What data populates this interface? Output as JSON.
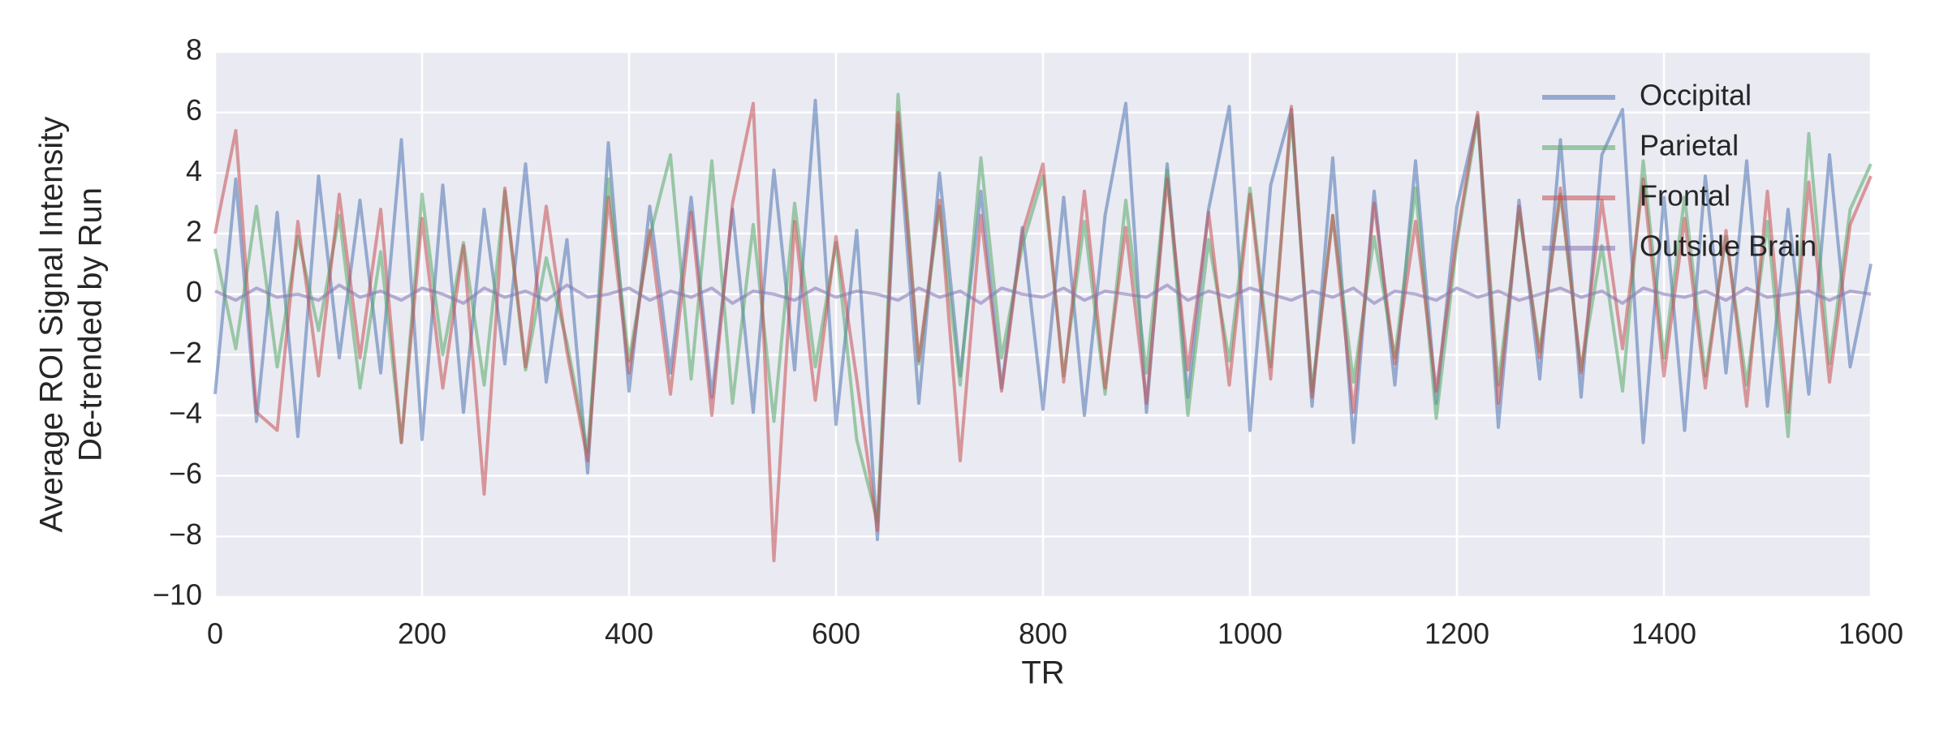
{
  "chart_data": {
    "type": "line",
    "xlabel": "TR",
    "ylabel": [
      "Average ROI Signal Intensity",
      "De-trended by Run"
    ],
    "x": [
      0,
      20,
      40,
      60,
      80,
      100,
      120,
      140,
      160,
      180,
      200,
      220,
      240,
      260,
      280,
      300,
      320,
      340,
      360,
      380,
      400,
      420,
      440,
      460,
      480,
      500,
      520,
      540,
      560,
      580,
      600,
      620,
      640,
      660,
      680,
      700,
      720,
      740,
      760,
      780,
      800,
      820,
      840,
      860,
      880,
      900,
      920,
      940,
      960,
      980,
      1000,
      1020,
      1040,
      1060,
      1080,
      1100,
      1120,
      1140,
      1160,
      1180,
      1200,
      1220,
      1240,
      1260,
      1280,
      1300,
      1320,
      1340,
      1360,
      1380,
      1400,
      1420,
      1440,
      1460,
      1480,
      1500,
      1520,
      1540,
      1560,
      1580,
      1600
    ],
    "series": [
      {
        "name": "Occipital",
        "color": "#4c72b0",
        "values": [
          -3.3,
          3.8,
          -4.2,
          2.7,
          -4.7,
          3.9,
          -2.1,
          3.1,
          -2.6,
          5.1,
          -4.8,
          3.6,
          -3.9,
          2.8,
          -2.3,
          4.3,
          -2.9,
          1.8,
          -5.9,
          5.0,
          -3.2,
          2.9,
          -2.6,
          3.2,
          -3.4,
          2.8,
          -3.9,
          4.1,
          -2.5,
          6.4,
          -4.3,
          2.1,
          -8.1,
          5.6,
          -3.6,
          4.0,
          -2.7,
          3.4,
          -3.1,
          2.2,
          -3.8,
          3.2,
          -4.0,
          2.6,
          6.3,
          -3.9,
          4.3,
          -3.4,
          2.8,
          6.2,
          -4.5,
          3.6,
          6.1,
          -3.7,
          4.5,
          -4.9,
          3.4,
          -3.0,
          4.4,
          -3.6,
          2.9,
          5.9,
          -4.4,
          3.1,
          -2.8,
          5.1,
          -3.4,
          4.6,
          6.1,
          -4.9,
          3.2,
          -4.5,
          3.9,
          -2.6,
          4.4,
          -3.7,
          2.8,
          -3.3,
          4.6,
          -2.4,
          1.0
        ]
      },
      {
        "name": "Parietal",
        "color": "#55a868",
        "values": [
          1.5,
          -1.8,
          2.9,
          -2.4,
          1.9,
          -1.2,
          2.6,
          -3.1,
          1.4,
          -4.9,
          3.3,
          -2.0,
          1.7,
          -3.0,
          3.4,
          -2.5,
          1.2,
          -1.6,
          -5.2,
          3.8,
          -2.2,
          1.9,
          4.6,
          -2.8,
          4.4,
          -3.6,
          2.3,
          -4.2,
          3.0,
          -2.4,
          1.7,
          -4.8,
          -7.5,
          6.6,
          -2.3,
          2.9,
          -3.0,
          4.5,
          -2.1,
          1.6,
          3.9,
          -2.7,
          2.4,
          -3.3,
          3.1,
          -2.6,
          4.1,
          -4.0,
          1.8,
          -2.2,
          3.5,
          -2.4,
          5.9,
          -3.2,
          2.6,
          -2.9,
          1.9,
          -2.1,
          3.5,
          -4.1,
          1.7,
          5.8,
          -3.0,
          2.7,
          -1.9,
          3.3,
          -2.5,
          1.6,
          -3.2,
          4.4,
          -2.1,
          3.2,
          -2.7,
          1.9,
          -3.0,
          2.4,
          -4.7,
          5.3,
          -2.3,
          2.8,
          4.3
        ]
      },
      {
        "name": "Frontal",
        "color": "#c44e52",
        "values": [
          2.0,
          5.4,
          -3.9,
          -4.5,
          2.4,
          -2.7,
          3.3,
          -2.1,
          2.8,
          -4.9,
          2.5,
          -3.1,
          1.6,
          -6.6,
          3.5,
          -2.4,
          2.9,
          -1.9,
          -5.5,
          3.2,
          -2.6,
          2.1,
          -3.3,
          2.7,
          -4.0,
          3.0,
          6.3,
          -8.8,
          2.4,
          -3.5,
          1.9,
          -2.8,
          -7.8,
          6.0,
          -2.2,
          3.1,
          -5.5,
          2.6,
          -3.2,
          2.0,
          4.3,
          -2.9,
          3.4,
          -3.1,
          2.2,
          -3.6,
          3.8,
          -2.5,
          2.7,
          -3.0,
          3.3,
          -2.8,
          6.2,
          -3.4,
          2.6,
          -3.9,
          3.0,
          -2.3,
          2.4,
          -3.2,
          1.9,
          6.0,
          -3.6,
          2.9,
          -2.1,
          3.5,
          -2.6,
          3.1,
          -1.8,
          3.8,
          -2.7,
          2.5,
          -3.1,
          2.1,
          -3.7,
          3.4,
          -3.9,
          3.7,
          -2.9,
          2.3,
          3.9
        ]
      },
      {
        "name": "Outside Brain",
        "color": "#8172b2",
        "values": [
          0.1,
          -0.2,
          0.2,
          -0.1,
          0.0,
          -0.2,
          0.3,
          -0.1,
          0.1,
          -0.2,
          0.2,
          0.0,
          -0.3,
          0.2,
          -0.1,
          0.1,
          -0.2,
          0.3,
          -0.1,
          0.0,
          0.2,
          -0.2,
          0.1,
          -0.1,
          0.2,
          -0.3,
          0.1,
          0.0,
          -0.2,
          0.2,
          -0.1,
          0.1,
          0.0,
          -0.2,
          0.2,
          -0.1,
          0.1,
          -0.3,
          0.2,
          0.0,
          -0.1,
          0.2,
          -0.2,
          0.1,
          0.0,
          -0.1,
          0.3,
          -0.2,
          0.1,
          -0.1,
          0.2,
          0.0,
          -0.2,
          0.1,
          -0.1,
          0.2,
          -0.3,
          0.1,
          0.0,
          -0.2,
          0.2,
          -0.1,
          0.1,
          -0.2,
          0.0,
          0.2,
          -0.1,
          0.1,
          -0.3,
          0.2,
          0.0,
          -0.1,
          0.1,
          -0.2,
          0.2,
          -0.1,
          0.0,
          0.1,
          -0.2,
          0.1,
          0.0
        ]
      }
    ],
    "xlim": [
      0,
      1600
    ],
    "xticks": [
      0,
      200,
      400,
      600,
      800,
      1000,
      1200,
      1400,
      1600
    ],
    "ylim": [
      -10,
      8
    ],
    "yticks": [
      {
        "value": -10,
        "label": "−10"
      },
      {
        "value": -8,
        "label": "−8"
      },
      {
        "value": -6,
        "label": "−6"
      },
      {
        "value": -4,
        "label": "−4"
      },
      {
        "value": -2,
        "label": "−2"
      },
      0,
      2,
      4,
      6,
      8
    ],
    "grid": true,
    "legend": "upper right",
    "background": "#eaeaf2",
    "line_opacity": 0.55
  }
}
